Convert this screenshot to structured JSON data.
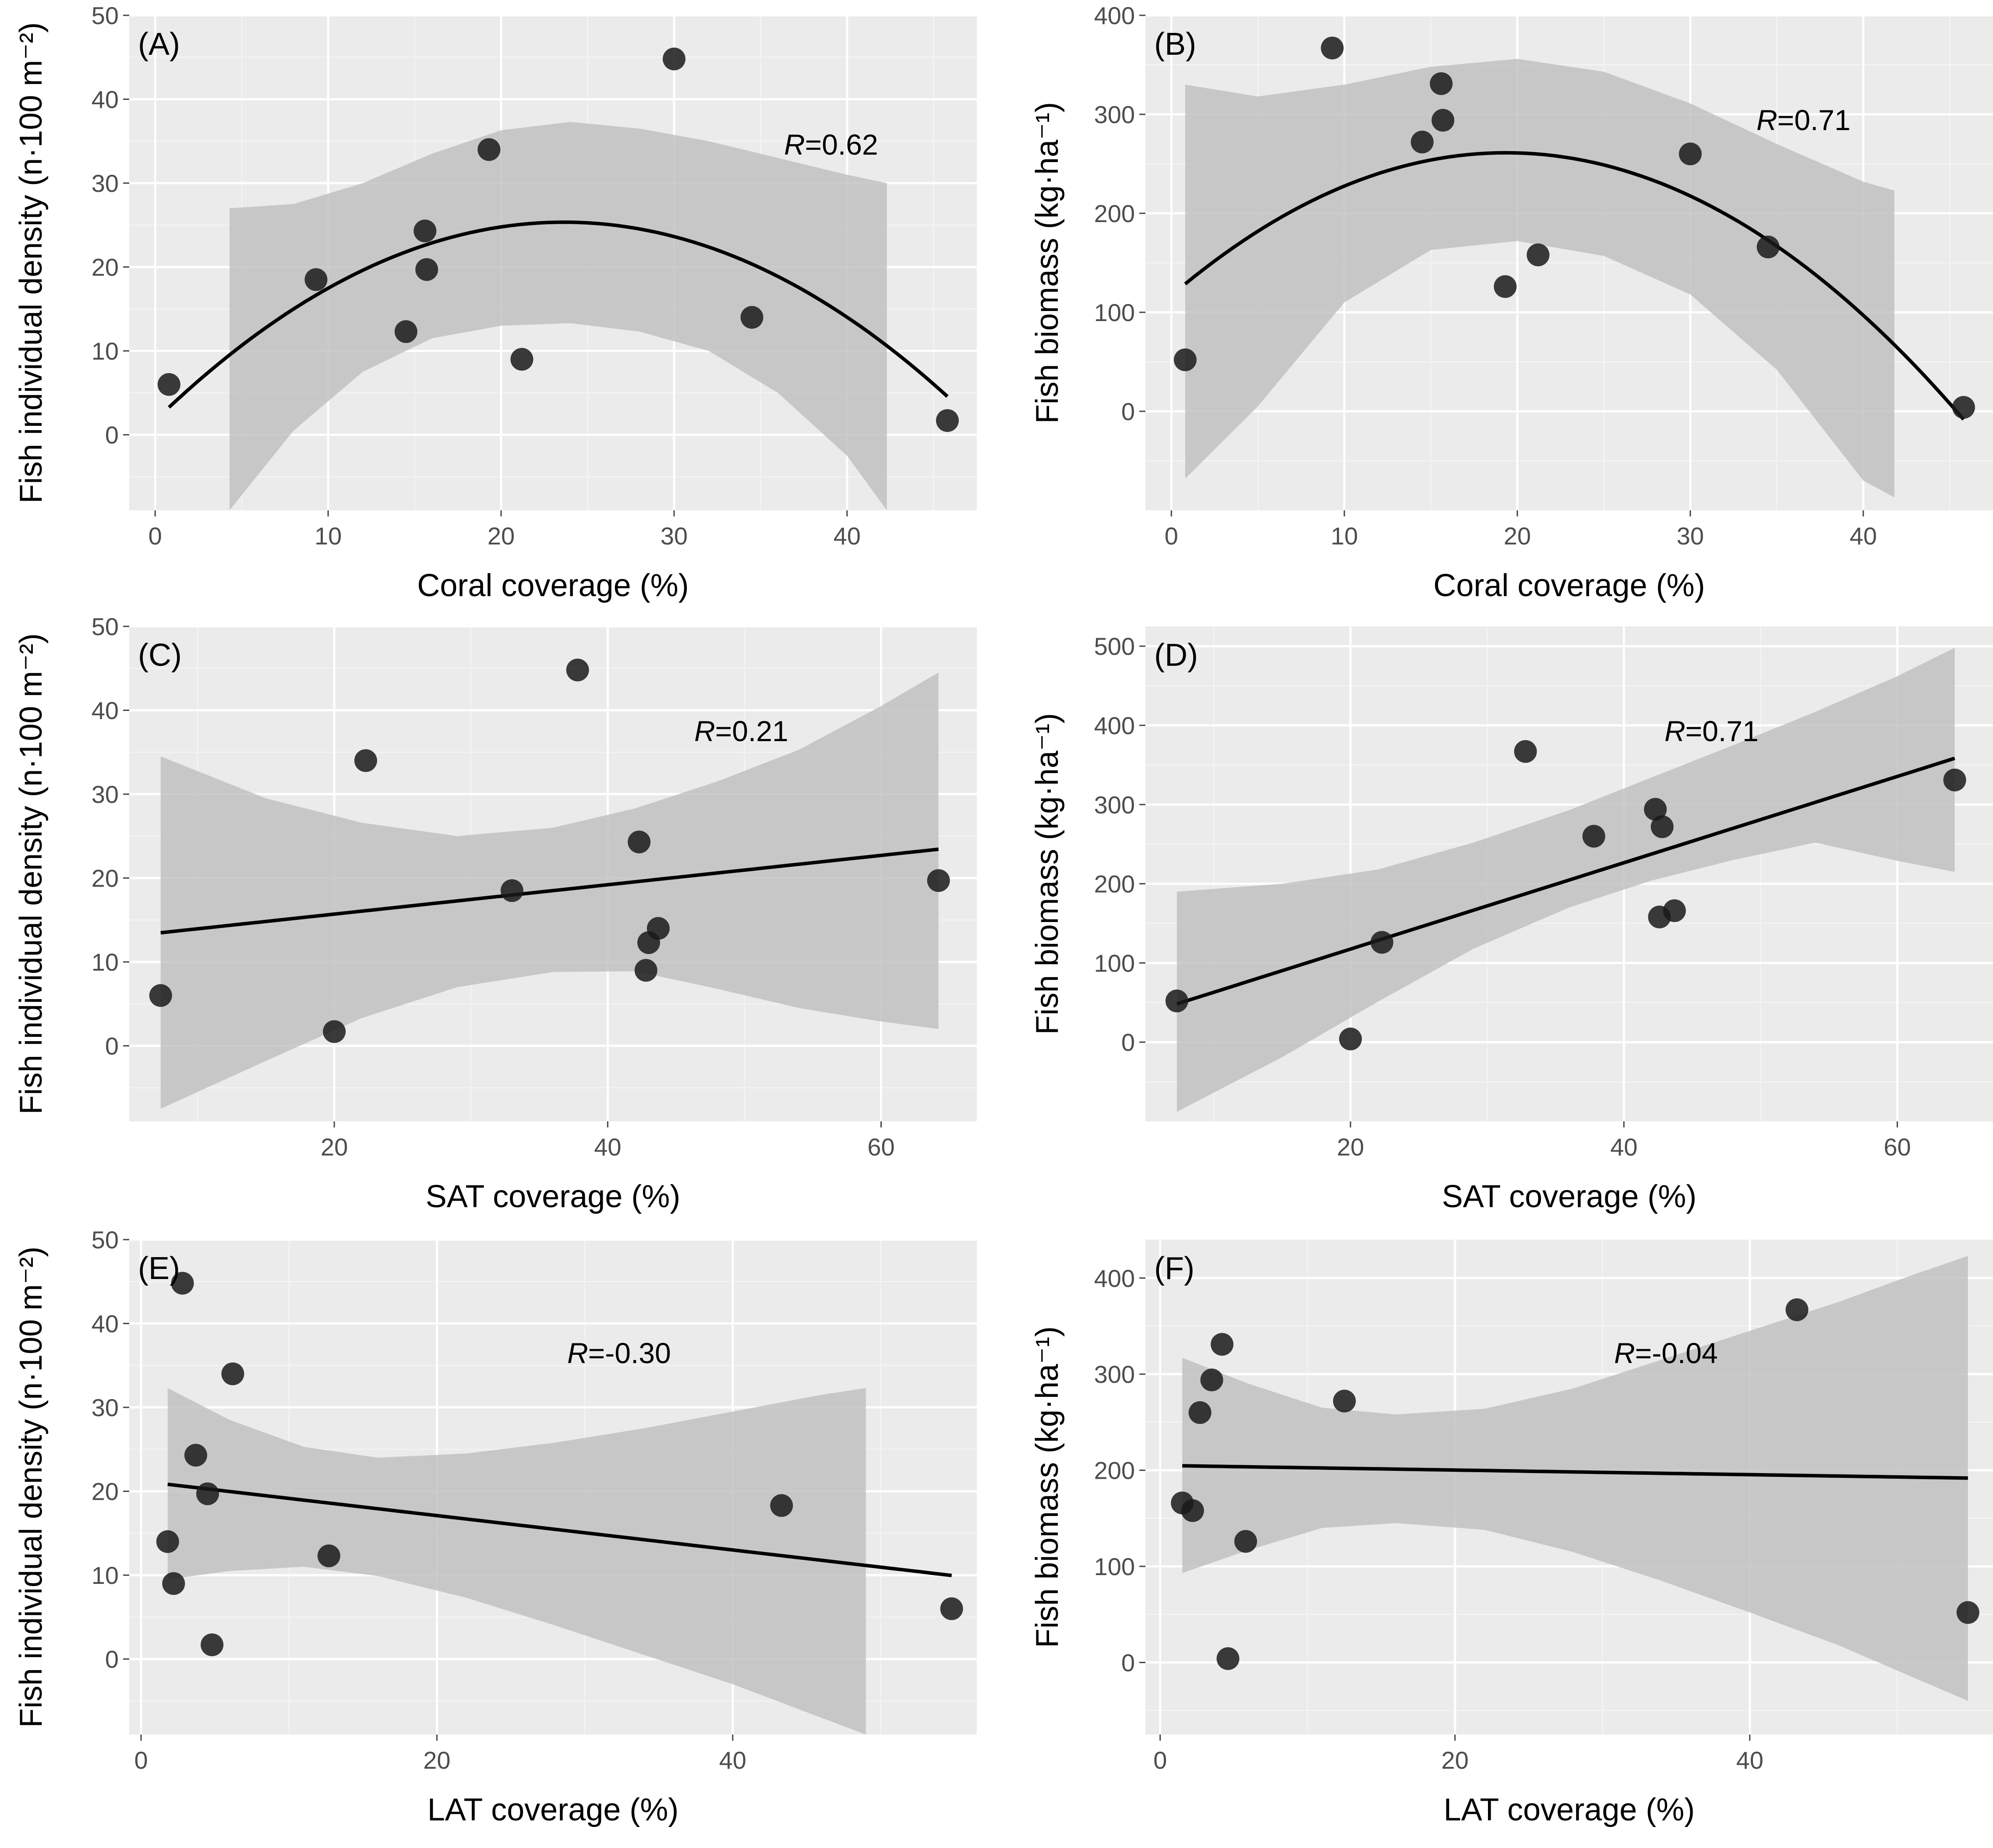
{
  "colors": {
    "panel_background": "#ebebeb",
    "grid": "#ffffff",
    "band": "#bdbdbd",
    "line": "#000000",
    "point": "#1a1a1a"
  },
  "chart_data": [
    {
      "id": "A",
      "type": "scatter",
      "panel_label": "(A)",
      "xlabel": "Coral coverage (%)",
      "ylabel": "Fish individual density (n·100 m⁻²)",
      "xlim": [
        -1.5,
        47.5
      ],
      "ylim": [
        -9,
        50
      ],
      "xticks": [
        0,
        10,
        20,
        30,
        40
      ],
      "yticks": [
        0,
        10,
        20,
        30,
        40,
        50
      ],
      "correlation": {
        "prefix": "R",
        "value": "=0.62"
      },
      "points": [
        [
          0.8,
          6
        ],
        [
          9.3,
          18.5
        ],
        [
          14.5,
          12.3
        ],
        [
          15.6,
          24.3
        ],
        [
          15.7,
          19.7
        ],
        [
          19.3,
          34
        ],
        [
          21.2,
          9
        ],
        [
          30,
          44.8
        ],
        [
          34.5,
          14
        ],
        [
          45.8,
          1.7
        ]
      ],
      "fit": {
        "kind": "quadratic",
        "coef": [
          1.7,
          2.0,
          -0.0423
        ],
        "x_range": [
          0.8,
          45.8
        ]
      },
      "band": {
        "x": [
          4.3,
          8,
          12,
          16,
          20,
          24,
          28,
          32,
          36,
          40,
          42.3
        ],
        "upper": [
          27,
          27.5,
          30,
          33.5,
          36.3,
          37.3,
          36.5,
          35,
          33,
          31,
          30
        ],
        "lower": [
          -9,
          0.5,
          7.5,
          11.5,
          13,
          13.3,
          12.3,
          10,
          5,
          -2.5,
          -9
        ]
      }
    },
    {
      "id": "B",
      "type": "scatter",
      "panel_label": "(B)",
      "xlabel": "Coral coverage (%)",
      "ylabel": "Fish biomass (kg·ha⁻¹)",
      "xlim": [
        -1.5,
        47.5
      ],
      "ylim": [
        -100,
        400
      ],
      "xticks": [
        0,
        10,
        20,
        30,
        40
      ],
      "yticks": [
        0,
        100,
        200,
        300,
        400
      ],
      "correlation": {
        "prefix": "R",
        "value": "=0.71"
      },
      "points": [
        [
          0.8,
          52
        ],
        [
          9.3,
          367
        ],
        [
          14.5,
          272
        ],
        [
          15.6,
          331
        ],
        [
          15.7,
          294
        ],
        [
          19.3,
          126
        ],
        [
          21.2,
          158
        ],
        [
          30,
          260
        ],
        [
          34.5,
          166
        ],
        [
          45.8,
          4
        ]
      ],
      "fit": {
        "kind": "quadratic",
        "coef": [
          117,
          14.9,
          -0.385
        ],
        "x_range": [
          0.8,
          45.8
        ]
      },
      "band": {
        "x": [
          0.8,
          5,
          10,
          15,
          20,
          25,
          30,
          35,
          40,
          41.8
        ],
        "upper": [
          330,
          318,
          330,
          348,
          356,
          343,
          311,
          270,
          232,
          223
        ],
        "lower": [
          -68,
          5,
          110,
          163,
          172,
          157,
          118,
          42,
          -70,
          -87
        ]
      }
    },
    {
      "id": "C",
      "type": "scatter",
      "panel_label": "(C)",
      "xlabel": "SAT coverage (%)",
      "ylabel": "Fish individual density (n·100 m⁻²)",
      "xlim": [
        5,
        67
      ],
      "ylim": [
        -9,
        50
      ],
      "xticks": [
        20,
        40,
        60
      ],
      "yticks": [
        0,
        10,
        20,
        30,
        40,
        50
      ],
      "correlation": {
        "prefix": "R",
        "value": "=0.21"
      },
      "points": [
        [
          7.3,
          6
        ],
        [
          20,
          1.7
        ],
        [
          22.3,
          34
        ],
        [
          33,
          18.5
        ],
        [
          37.8,
          44.8
        ],
        [
          42.3,
          24.3
        ],
        [
          42.8,
          9
        ],
        [
          43,
          12.3
        ],
        [
          43.7,
          14
        ],
        [
          64.2,
          19.7
        ]
      ],
      "fit": {
        "kind": "linear",
        "coef": [
          12.2,
          0.175
        ],
        "x_range": [
          7.3,
          64.2
        ]
      },
      "band": {
        "x": [
          7.3,
          15,
          22,
          29,
          36,
          42,
          48,
          54,
          60,
          64.2
        ],
        "upper": [
          34.5,
          29.5,
          26.6,
          25,
          26,
          28.3,
          31.5,
          35.3,
          40.5,
          44.5
        ],
        "lower": [
          -7.5,
          -1.8,
          3.3,
          7,
          8.8,
          8.9,
          6.8,
          4.5,
          2.9,
          2
        ]
      }
    },
    {
      "id": "D",
      "type": "scatter",
      "panel_label": "(D)",
      "xlabel": "SAT coverage (%)",
      "ylabel": "Fish biomass (kg·ha⁻¹)",
      "xlim": [
        5,
        67
      ],
      "ylim": [
        -100,
        525
      ],
      "xticks": [
        20,
        40,
        60
      ],
      "yticks": [
        0,
        100,
        200,
        300,
        400,
        500
      ],
      "correlation": {
        "prefix": "R",
        "value": "=0.71"
      },
      "points": [
        [
          7.3,
          52
        ],
        [
          20,
          4
        ],
        [
          22.3,
          126
        ],
        [
          32.8,
          367
        ],
        [
          37.8,
          260
        ],
        [
          42.3,
          294
        ],
        [
          42.6,
          158
        ],
        [
          42.8,
          272
        ],
        [
          43.7,
          166
        ],
        [
          64.2,
          331
        ]
      ],
      "fit": {
        "kind": "linear",
        "coef": [
          8.5,
          5.45
        ],
        "x_range": [
          7.3,
          64.2
        ]
      },
      "band": {
        "x": [
          7.3,
          15,
          22,
          29,
          36,
          42,
          48,
          54,
          60,
          64.2
        ],
        "upper": [
          190,
          200,
          218,
          252,
          293,
          334,
          375,
          417,
          462,
          498
        ],
        "lower": [
          -88,
          -19,
          51,
          118,
          170,
          204,
          230,
          252,
          229,
          215
        ]
      }
    },
    {
      "id": "E",
      "type": "scatter",
      "panel_label": "(E)",
      "xlabel": "LAT coverage (%)",
      "ylabel": "Fish individual density (n·100 m⁻²)",
      "xlim": [
        -0.8,
        56.5
      ],
      "ylim": [
        -9,
        50
      ],
      "xticks": [
        0,
        20,
        40
      ],
      "yticks": [
        0,
        10,
        20,
        30,
        40,
        50
      ],
      "correlation": {
        "prefix": "R",
        "value": "=-0.30"
      },
      "points": [
        [
          1.8,
          14
        ],
        [
          2.2,
          9
        ],
        [
          2.8,
          44.8
        ],
        [
          3.7,
          24.3
        ],
        [
          4.5,
          19.7
        ],
        [
          4.8,
          1.7
        ],
        [
          6.2,
          34
        ],
        [
          12.7,
          12.3
        ],
        [
          43.3,
          18.3
        ],
        [
          54.8,
          6
        ]
      ],
      "fit": {
        "kind": "linear",
        "coef": [
          21.2,
          -0.205
        ],
        "x_range": [
          1.8,
          54.8
        ]
      },
      "band": {
        "x": [
          1.8,
          6,
          11,
          16,
          22,
          28,
          34,
          40,
          46,
          49
        ],
        "upper": [
          32.3,
          28.5,
          25.3,
          24,
          24.5,
          25.8,
          27.5,
          29.5,
          31.5,
          32.3
        ],
        "lower": [
          9.5,
          10.5,
          11,
          9.9,
          7.3,
          4,
          0.5,
          -3,
          -7,
          -9
        ]
      }
    },
    {
      "id": "F",
      "type": "scatter",
      "panel_label": "(F)",
      "xlabel": "LAT coverage (%)",
      "ylabel": "Fish biomass (kg·ha⁻¹)",
      "xlim": [
        -1,
        56.5
      ],
      "ylim": [
        -75,
        440
      ],
      "xticks": [
        0,
        20,
        40
      ],
      "yticks": [
        0,
        100,
        200,
        300,
        400
      ],
      "correlation": {
        "prefix": "R",
        "value": "=-0.04"
      },
      "points": [
        [
          1.5,
          166
        ],
        [
          2.2,
          158
        ],
        [
          2.7,
          260
        ],
        [
          3.5,
          294
        ],
        [
          4.2,
          331
        ],
        [
          4.6,
          4
        ],
        [
          5.8,
          126
        ],
        [
          12.5,
          272
        ],
        [
          43.2,
          367
        ],
        [
          54.8,
          52
        ]
      ],
      "fit": {
        "kind": "linear",
        "coef": [
          205,
          -0.24
        ],
        "x_range": [
          1.5,
          54.8
        ]
      },
      "band": {
        "x": [
          1.5,
          6,
          11,
          16,
          22,
          28,
          34,
          40,
          46,
          51,
          54.8
        ],
        "upper": [
          317,
          290,
          265,
          258,
          264,
          285,
          315,
          345,
          375,
          403,
          423
        ],
        "lower": [
          93,
          117,
          140,
          145,
          138,
          115,
          85,
          52,
          18,
          -15,
          -40
        ]
      }
    }
  ]
}
